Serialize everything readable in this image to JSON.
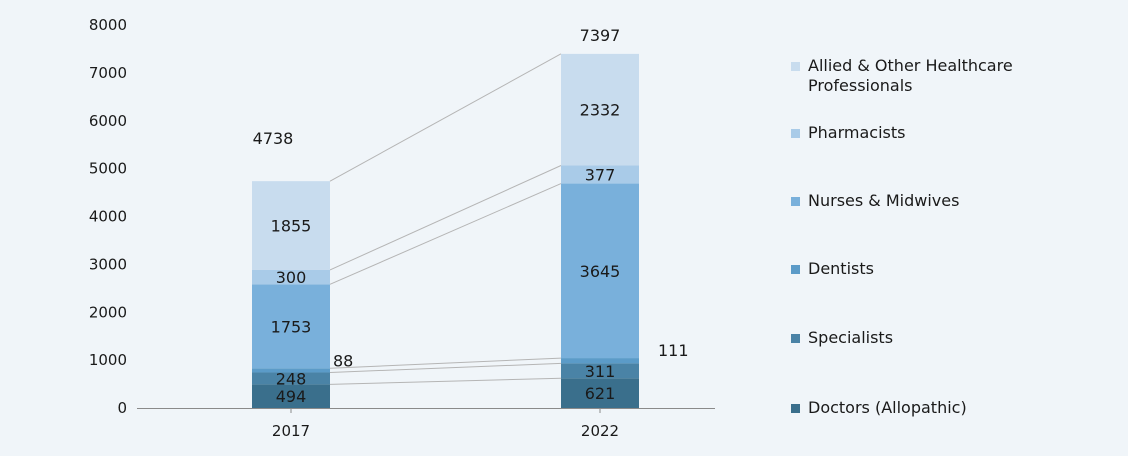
{
  "chart_data": {
    "type": "bar",
    "stacked": true,
    "title": "",
    "xlabel": "",
    "ylabel": "",
    "categories": [
      "2017",
      "2022"
    ],
    "ylim": [
      0,
      8000
    ],
    "yticks": [
      0,
      1000,
      2000,
      3000,
      4000,
      5000,
      6000,
      7000,
      8000
    ],
    "grid": false,
    "legend_position": "right",
    "series": [
      {
        "name": "Doctors (Allopathic)",
        "values": [
          494,
          621
        ],
        "color": "#3a6f8c"
      },
      {
        "name": "Specialists",
        "values": [
          248,
          311
        ],
        "color": "#4a83a6"
      },
      {
        "name": "Dentists",
        "values": [
          88,
          111
        ],
        "color": "#5b9bc8"
      },
      {
        "name": "Nurses & Midwives",
        "values": [
          1753,
          3645
        ],
        "color": "#79b0db"
      },
      {
        "name": "Pharmacists",
        "values": [
          300,
          377
        ],
        "color": "#a9cbe8"
      },
      {
        "name": "Allied & Other Healthcare Professionals",
        "values": [
          1855,
          2332
        ],
        "color": "#c8dcee"
      }
    ],
    "totals": [
      4738,
      7397
    ]
  }
}
